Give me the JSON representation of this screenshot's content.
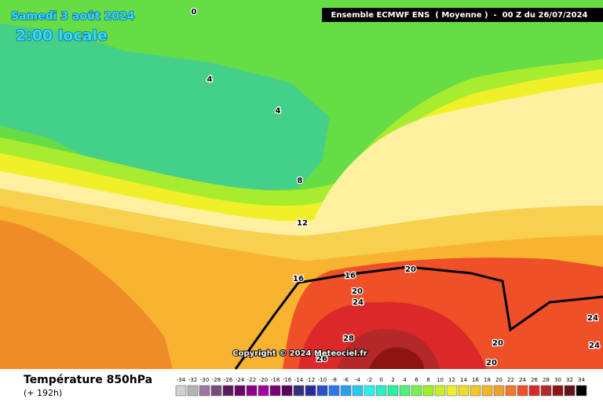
{
  "header": {
    "date": "Samedi 3 août 2024",
    "time": "2:00 locale",
    "run": "Ensemble ECMWF ENS  ( Moyenne )  -  00 Z du 26/07/2024"
  },
  "map": {
    "contour_labels": [
      0,
      4,
      4,
      8,
      12,
      16,
      16,
      20,
      20,
      24,
      28,
      26,
      20,
      20,
      24,
      24
    ],
    "copyright": "Copyright © 2024 Meteociel.fr"
  },
  "footer": {
    "title": "Température 850hPa",
    "lead": "(+ 192h)"
  },
  "legend": {
    "labels": [
      "-34",
      "-32",
      "-30",
      "-28",
      "-26",
      "-24",
      "-22",
      "-20",
      "-18",
      "-16",
      "-14",
      "-12",
      "-10",
      "-8",
      "-6",
      "-4",
      "-2",
      "0",
      "2",
      "4",
      "6",
      "8",
      "10",
      "12",
      "14",
      "16",
      "18",
      "20",
      "22",
      "24",
      "26",
      "28",
      "30",
      "32",
      "34"
    ],
    "colors": [
      "#d0d0d0",
      "#b4b4b4",
      "#9a7aa0",
      "#7a4a7a",
      "#5a1a5a",
      "#6a006a",
      "#8a008a",
      "#a000a0",
      "#780078",
      "#5a005a",
      "#323278",
      "#2828a0",
      "#2850c8",
      "#2878f0",
      "#28a0f0",
      "#28c8f0",
      "#28f0f0",
      "#28f0c8",
      "#28f0a0",
      "#50f078",
      "#78f050",
      "#a0f028",
      "#c8f028",
      "#f0f028",
      "#f0dc28",
      "#f0c828",
      "#f0b428",
      "#f0a028",
      "#f07828",
      "#f05028",
      "#dc2828",
      "#b42828",
      "#8c1414",
      "#641414",
      "#000000"
    ]
  }
}
